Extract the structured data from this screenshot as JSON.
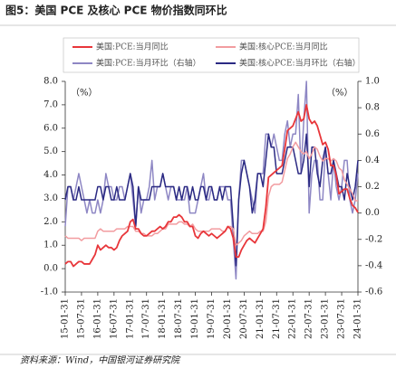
{
  "chart_data": {
    "type": "line",
    "title": "图5：美国 PCE 及核心 PCE 物价指数同环比",
    "source": "资料来源：Wind，中国银河证券研究院",
    "annotations": [
      "（%）",
      "（%）"
    ],
    "categories": [
      "15-01-31",
      null,
      null,
      null,
      null,
      null,
      "15-07-31",
      null,
      null,
      null,
      null,
      null,
      "16-01-31",
      null,
      null,
      null,
      null,
      null,
      "16-07-31",
      null,
      null,
      null,
      null,
      null,
      "17-01-31",
      null,
      null,
      null,
      null,
      null,
      "17-07-31",
      null,
      null,
      null,
      null,
      null,
      "18-01-31",
      null,
      null,
      null,
      null,
      null,
      "18-07-31",
      null,
      null,
      null,
      null,
      null,
      "19-01-31",
      null,
      null,
      null,
      null,
      null,
      "19-07-31",
      null,
      null,
      null,
      null,
      null,
      "20-01-31",
      null,
      null,
      null,
      null,
      null,
      "20-07-31",
      null,
      null,
      null,
      null,
      null,
      "21-01-31",
      null,
      null,
      null,
      null,
      null,
      "21-07-31",
      null,
      null,
      null,
      null,
      null,
      "22-01-31",
      null,
      null,
      null,
      null,
      null,
      "22-07-31",
      null,
      null,
      null,
      null,
      null,
      "23-01-31",
      null,
      null,
      null,
      null,
      null,
      "23-07-31",
      null,
      null,
      null,
      null,
      null,
      "24-01-31"
    ],
    "series": [
      {
        "name": "美国:PCE:当月同比",
        "color": "#e8363a",
        "axis": "y",
        "values": [
          0.2,
          0.3,
          0.3,
          0.1,
          0.2,
          0.3,
          0.3,
          0.2,
          0.2,
          0.2,
          0.4,
          0.6,
          1.0,
          0.8,
          0.9,
          1.0,
          0.9,
          0.9,
          0.8,
          0.9,
          1.2,
          1.4,
          1.5,
          1.6,
          2.0,
          2.1,
          1.7,
          1.7,
          1.5,
          1.4,
          1.4,
          1.5,
          1.6,
          1.6,
          1.7,
          1.8,
          1.7,
          1.8,
          2.0,
          2.0,
          2.2,
          2.2,
          2.3,
          2.2,
          2.0,
          2.0,
          1.8,
          1.8,
          1.4,
          1.3,
          1.5,
          1.6,
          1.5,
          1.4,
          1.5,
          1.4,
          1.3,
          1.4,
          1.5,
          1.6,
          1.8,
          1.7,
          1.3,
          0.5,
          0.5,
          0.8,
          1.0,
          1.2,
          1.3,
          1.2,
          1.1,
          1.3,
          1.5,
          1.7,
          2.6,
          3.9,
          4.0,
          4.1,
          4.2,
          4.3,
          4.4,
          5.1,
          5.9,
          6.0,
          6.1,
          6.4,
          6.7,
          6.3,
          6.4,
          7.0,
          6.4,
          6.2,
          6.3,
          6.1,
          5.7,
          5.3,
          5.4,
          5.1,
          4.4,
          4.4,
          4.0,
          3.2,
          3.3,
          3.4,
          3.4,
          3.0,
          2.7,
          2.6,
          2.4
        ]
      },
      {
        "name": "美国:核心PCE:当月同比",
        "color": "#f29ca0",
        "axis": "y",
        "values": [
          1.4,
          1.3,
          1.3,
          1.3,
          1.3,
          1.3,
          1.2,
          1.3,
          1.3,
          1.3,
          1.3,
          1.3,
          1.6,
          1.7,
          1.6,
          1.6,
          1.6,
          1.6,
          1.6,
          1.7,
          1.7,
          1.7,
          1.7,
          1.8,
          1.8,
          1.8,
          1.6,
          1.6,
          1.5,
          1.5,
          1.4,
          1.4,
          1.4,
          1.5,
          1.5,
          1.6,
          1.7,
          1.7,
          1.9,
          1.9,
          1.9,
          1.9,
          2.0,
          2.0,
          1.9,
          1.9,
          1.8,
          1.9,
          1.7,
          1.6,
          1.6,
          1.6,
          1.6,
          1.6,
          1.7,
          1.7,
          1.7,
          1.7,
          1.6,
          1.6,
          1.8,
          1.8,
          1.7,
          1.0,
          1.1,
          1.2,
          1.4,
          1.5,
          1.6,
          1.5,
          1.5,
          1.5,
          1.6,
          1.6,
          2.0,
          3.1,
          3.5,
          3.6,
          3.6,
          3.6,
          3.7,
          4.2,
          4.7,
          4.9,
          5.2,
          5.4,
          5.2,
          5.0,
          4.9,
          5.0,
          4.7,
          4.9,
          5.2,
          5.1,
          4.8,
          4.6,
          4.7,
          4.7,
          4.6,
          4.7,
          4.6,
          4.3,
          4.2,
          3.8,
          3.6,
          3.4,
          3.2,
          2.9,
          2.9
        ]
      },
      {
        "name": "美国:PCE:当月环比（右轴）",
        "color": "#8e87c4",
        "axis": "y2",
        "values": [
          -0.1,
          0.2,
          0.2,
          0.1,
          0.2,
          0.3,
          0.2,
          0.1,
          0.0,
          0.1,
          0.0,
          0.0,
          0.1,
          0.0,
          0.1,
          0.3,
          0.2,
          0.2,
          0.1,
          0.1,
          0.2,
          0.2,
          0.1,
          0.2,
          0.3,
          0.1,
          -0.1,
          0.2,
          0.0,
          0.1,
          0.1,
          0.2,
          0.4,
          0.1,
          0.2,
          0.2,
          0.3,
          0.2,
          0.1,
          0.2,
          0.2,
          0.1,
          0.1,
          0.1,
          0.1,
          0.2,
          0.0,
          0.0,
          0.0,
          0.1,
          0.2,
          0.3,
          0.1,
          0.1,
          0.2,
          0.1,
          0.1,
          0.2,
          0.2,
          0.2,
          0.1,
          0.1,
          -0.2,
          -0.5,
          0.1,
          0.4,
          0.4,
          0.3,
          0.2,
          0.1,
          0.0,
          0.3,
          0.3,
          0.3,
          0.6,
          0.6,
          0.5,
          0.6,
          0.5,
          0.4,
          0.4,
          0.6,
          0.7,
          0.5,
          0.6,
          0.6,
          0.9,
          0.3,
          0.7,
          1.0,
          0.0,
          0.3,
          0.4,
          0.4,
          0.1,
          0.1,
          0.5,
          0.3,
          0.1,
          0.4,
          0.2,
          0.1,
          0.2,
          0.4,
          0.4,
          0.1,
          0.0,
          0.1,
          0.3
        ]
      },
      {
        "name": "美国:核心PCE:当月环比（右轴）",
        "color": "#2b2a83",
        "axis": "y2",
        "values": [
          0.1,
          0.2,
          0.2,
          0.1,
          0.1,
          0.2,
          0.1,
          0.1,
          0.1,
          0.1,
          0.1,
          0.1,
          0.2,
          0.2,
          0.1,
          0.2,
          0.2,
          0.1,
          0.1,
          0.2,
          0.1,
          0.1,
          0.1,
          0.2,
          0.3,
          0.2,
          -0.1,
          0.2,
          0.1,
          0.1,
          0.1,
          0.1,
          0.2,
          0.2,
          0.2,
          0.2,
          0.3,
          0.2,
          0.2,
          0.2,
          0.2,
          0.1,
          0.2,
          0.1,
          0.2,
          0.2,
          0.1,
          0.2,
          0.1,
          0.1,
          0.2,
          0.2,
          0.1,
          0.2,
          0.2,
          0.1,
          0.1,
          0.2,
          0.1,
          0.2,
          0.2,
          0.2,
          -0.1,
          -0.4,
          0.1,
          0.3,
          0.4,
          0.3,
          0.2,
          0.0,
          0.1,
          0.3,
          0.3,
          0.2,
          0.4,
          0.6,
          0.5,
          0.5,
          0.3,
          0.3,
          0.3,
          0.4,
          0.5,
          0.5,
          0.5,
          0.4,
          0.3,
          0.3,
          0.4,
          0.6,
          0.2,
          0.5,
          0.5,
          0.3,
          0.2,
          0.4,
          0.5,
          0.3,
          0.3,
          0.4,
          0.3,
          0.2,
          0.2,
          0.1,
          0.3,
          0.2,
          0.1,
          0.2,
          0.4
        ]
      }
    ],
    "ylim": [
      -1,
      8
    ],
    "yticks": [
      {
        "value": -1,
        "label": "-1.0"
      },
      {
        "value": 0,
        "label": "0.0"
      },
      {
        "value": 1,
        "label": "1.0"
      },
      {
        "value": 2,
        "label": "2.0"
      },
      {
        "value": 3,
        "label": "3.0"
      },
      {
        "value": 4,
        "label": "4.0"
      },
      {
        "value": 5,
        "label": "5.0"
      },
      {
        "value": 6,
        "label": "6.0"
      },
      {
        "value": 7,
        "label": "7.0"
      },
      {
        "value": 8,
        "label": "8.0"
      }
    ],
    "y2lim": [
      -0.6,
      1.0
    ],
    "y2ticks": [
      {
        "value": -0.6,
        "label": "-0.6"
      },
      {
        "value": -0.4,
        "label": "-0.4"
      },
      {
        "value": -0.2,
        "label": "-0.2"
      },
      {
        "value": 0,
        "label": "0.0"
      },
      {
        "value": 0.2,
        "label": "0.2"
      },
      {
        "value": 0.4,
        "label": "0.4"
      },
      {
        "value": 0.6,
        "label": "0.6"
      },
      {
        "value": 0.8,
        "label": "0.8"
      },
      {
        "value": 1.0,
        "label": "1.0"
      }
    ],
    "grid": false
  }
}
